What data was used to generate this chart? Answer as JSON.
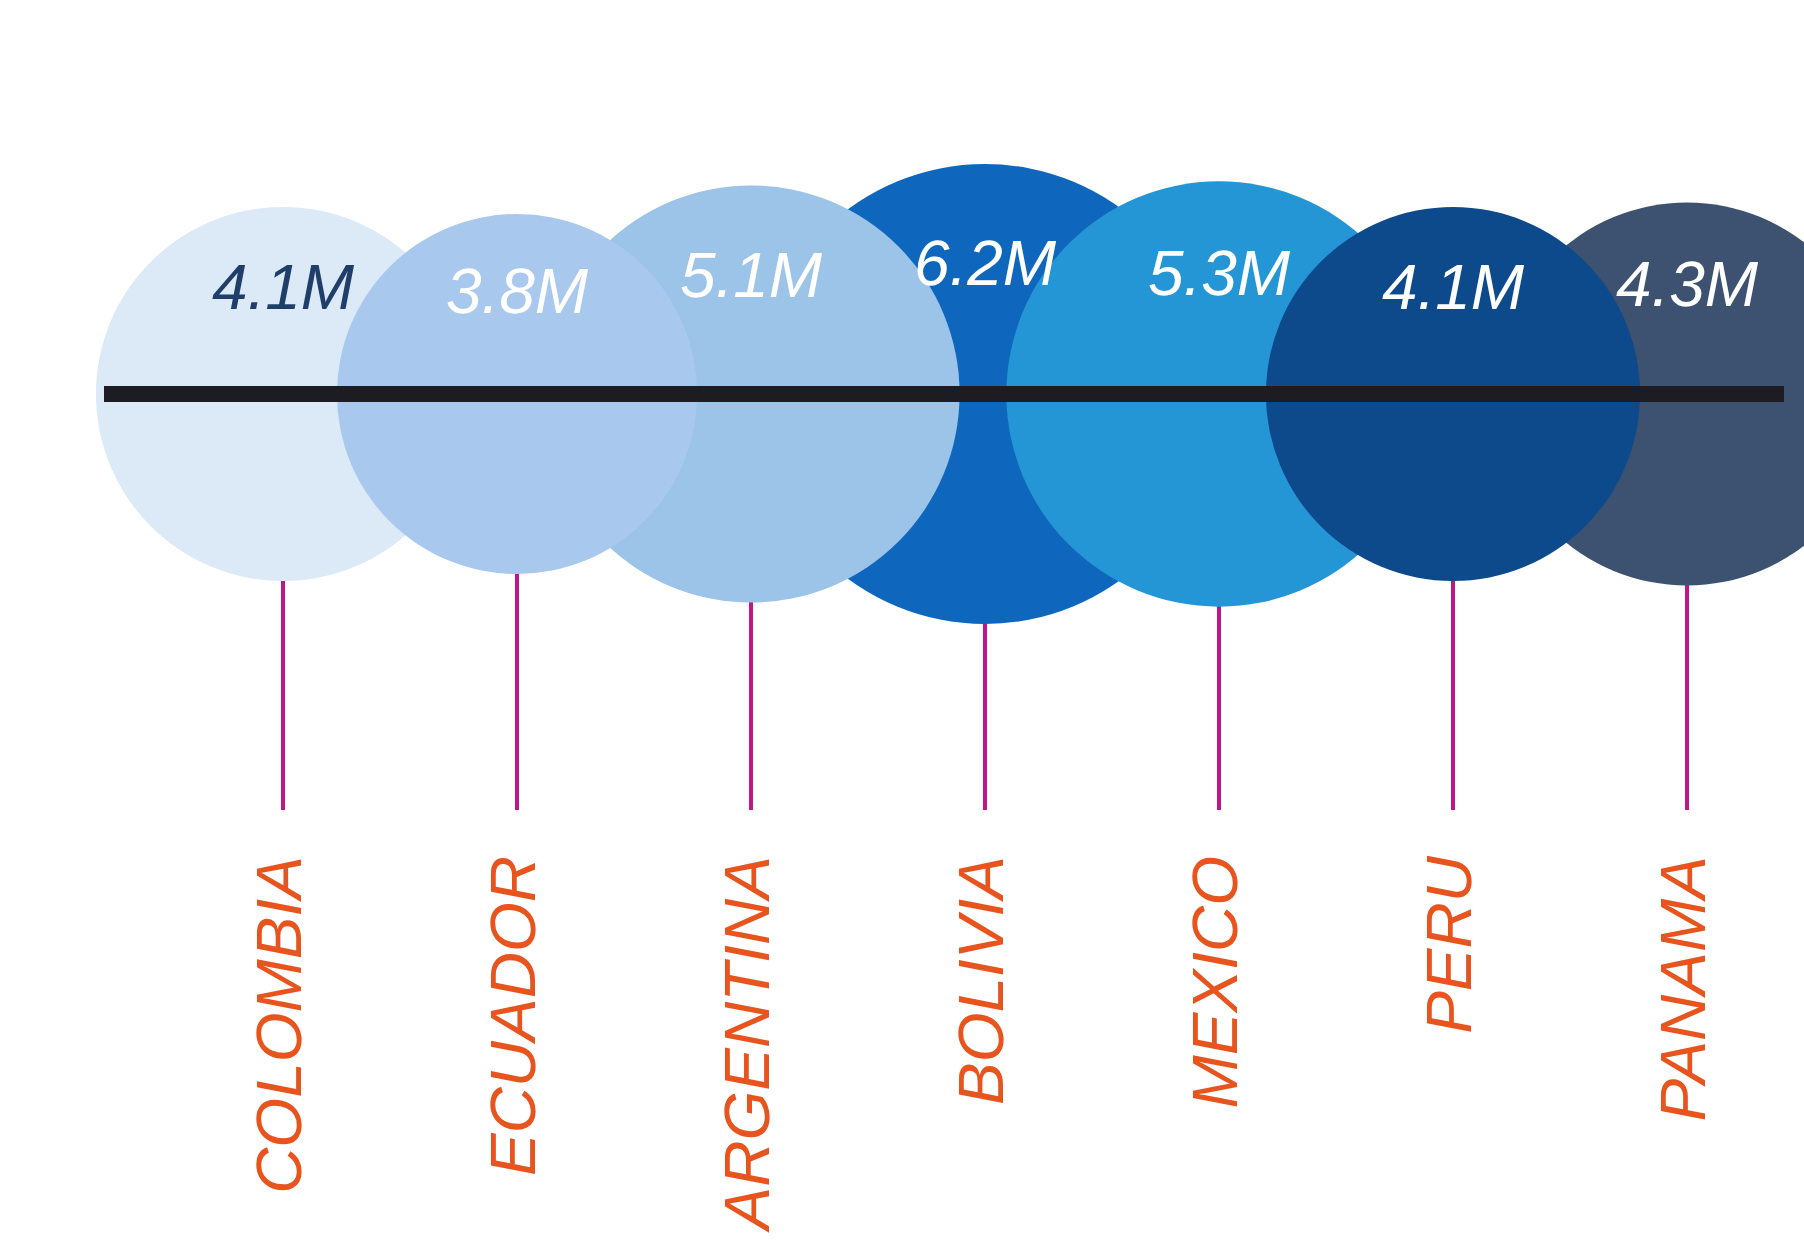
{
  "chart_data": {
    "type": "other",
    "categories": [
      "COLOMBIA",
      "ECUADOR",
      "ARGENTINA",
      "BOLIVIA",
      "MEXICO",
      "PERU",
      "PANAMA"
    ],
    "values": [
      4.1,
      3.8,
      5.1,
      6.2,
      5.3,
      4.1,
      4.3
    ],
    "value_labels": [
      "4.1M",
      "3.8M",
      "5.1M",
      "6.2M",
      "5.3M",
      "4.1M",
      "4.3M"
    ],
    "colors": [
      "#dce9f7",
      "#a9c8ee",
      "#9cc3e8",
      "#0e67bd",
      "#2496d6",
      "#0d4a8b",
      "#3d5270"
    ]
  }
}
